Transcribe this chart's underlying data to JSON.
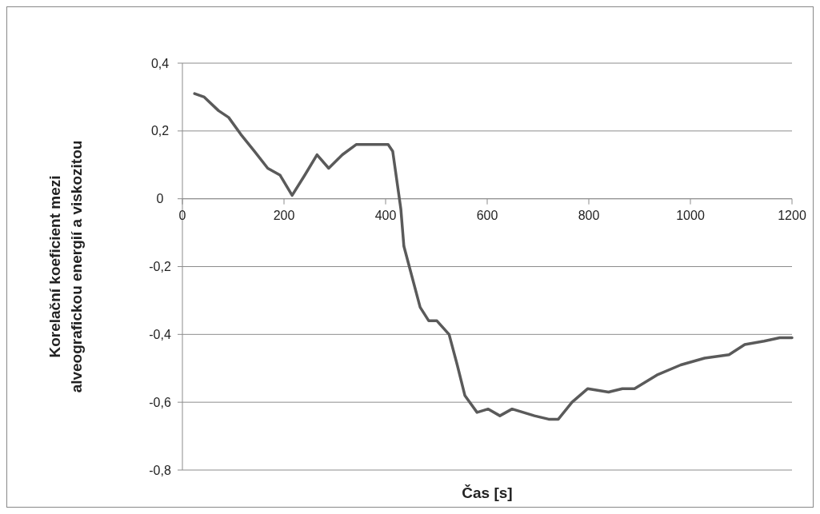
{
  "chart_data": {
    "type": "line",
    "xlabel": "Čas [s]",
    "ylabel": "Korelační koeficient mezi\nalveografickou energií a viskozitou",
    "series": [
      {
        "color": "#5a5a5a",
        "x": [
          24,
          43,
          71,
          91,
          115,
          142,
          168,
          192,
          216,
          241,
          265,
          288,
          315,
          342,
          362,
          405,
          414,
          430,
          436,
          452,
          468,
          485,
          501,
          525,
          541,
          556,
          580,
          602,
          625,
          649,
          693,
          721,
          740,
          767,
          798,
          839,
          866,
          890,
          934,
          981,
          1028,
          1076,
          1107,
          1145,
          1176,
          1200
        ],
        "values": [
          0.31,
          0.3,
          0.26,
          0.24,
          0.19,
          0.14,
          0.09,
          0.07,
          0.01,
          0.07,
          0.13,
          0.09,
          0.13,
          0.16,
          0.16,
          0.16,
          0.14,
          -0.03,
          -0.14,
          -0.23,
          -0.32,
          -0.36,
          -0.36,
          -0.4,
          -0.49,
          -0.58,
          -0.63,
          -0.62,
          -0.64,
          -0.62,
          -0.64,
          -0.65,
          -0.65,
          -0.6,
          -0.56,
          -0.57,
          -0.56,
          -0.56,
          -0.52,
          -0.49,
          -0.47,
          -0.46,
          -0.43,
          -0.42,
          -0.41,
          -0.41
        ]
      }
    ],
    "xlim": [
      0,
      1200
    ],
    "xticks": [
      0,
      200,
      400,
      600,
      800,
      1000,
      1200
    ],
    "ylim": [
      -0.8,
      0.4
    ],
    "yticks": [
      {
        "value": -0.8,
        "label": "-0,8"
      },
      {
        "value": -0.6,
        "label": "-0,6"
      },
      {
        "value": -0.4,
        "label": "-0,4"
      },
      {
        "value": -0.2,
        "label": "-0,2"
      },
      {
        "value": 0,
        "label": "0"
      },
      {
        "value": 0.2,
        "label": "0,2"
      },
      {
        "value": 0.4,
        "label": "0,4"
      }
    ],
    "grid": "y",
    "marker": "none",
    "line_style": "solid"
  }
}
